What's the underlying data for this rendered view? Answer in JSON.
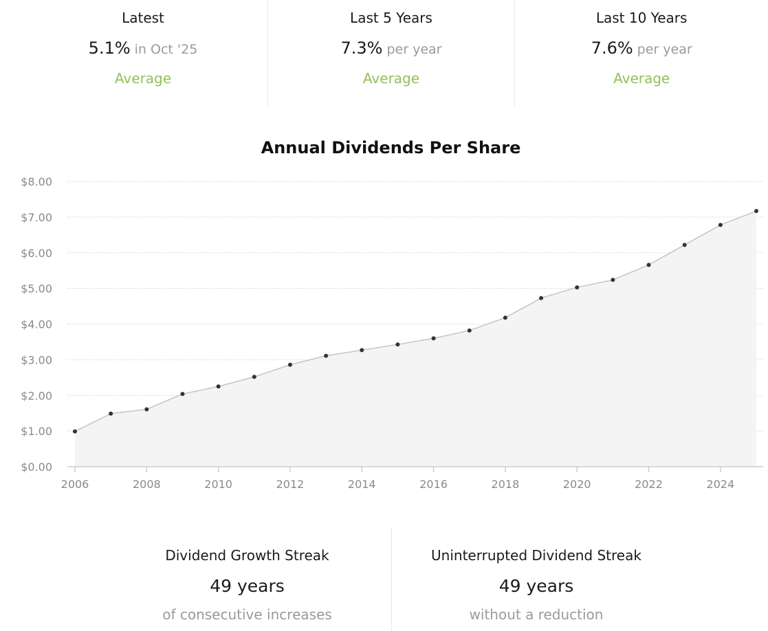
{
  "stats": [
    {
      "label": "Latest",
      "value": "5.1%",
      "suffix": "in Oct '25",
      "rating": "Average"
    },
    {
      "label": "Last 5 Years",
      "value": "7.3%",
      "suffix": "per year",
      "rating": "Average"
    },
    {
      "label": "Last 10 Years",
      "value": "7.6%",
      "suffix": "per year",
      "rating": "Average"
    }
  ],
  "rating_color": "#93c05a",
  "chart_data": {
    "type": "area",
    "title": "Annual Dividends Per Share",
    "xlabel": "",
    "ylabel": "",
    "x": [
      2006,
      2007,
      2008,
      2009,
      2010,
      2011,
      2012,
      2013,
      2014,
      2015,
      2016,
      2017,
      2018,
      2019,
      2020,
      2021,
      2022,
      2023,
      2024,
      2025
    ],
    "values": [
      0.99,
      1.49,
      1.61,
      2.04,
      2.25,
      2.52,
      2.86,
      3.11,
      3.27,
      3.43,
      3.6,
      3.82,
      4.18,
      4.73,
      5.03,
      5.24,
      5.66,
      6.22,
      6.78,
      7.17
    ],
    "xlim": [
      2006,
      2025
    ],
    "ylim": [
      0,
      8
    ],
    "yticks": [
      0,
      1,
      2,
      3,
      4,
      5,
      6,
      7,
      8
    ],
    "ytick_labels": [
      "$0.00",
      "$1.00",
      "$2.00",
      "$3.00",
      "$4.00",
      "$5.00",
      "$6.00",
      "$7.00",
      "$8.00"
    ],
    "xticks": [
      2006,
      2008,
      2010,
      2012,
      2014,
      2016,
      2018,
      2020,
      2022,
      2024
    ],
    "xtick_labels": [
      "2006",
      "2008",
      "2010",
      "2012",
      "2014",
      "2016",
      "2018",
      "2020",
      "2022",
      "2024"
    ],
    "grid": true,
    "colors": {
      "line": "#c4c4c4",
      "fill": "#f4f4f4",
      "point": "#333333",
      "grid": "#d0d0d0",
      "axis": "#cccccc",
      "tick_label": "#8a8a8a"
    }
  },
  "streaks": [
    {
      "label": "Dividend Growth Streak",
      "value": "49 years",
      "sub": "of consecutive increases"
    },
    {
      "label": "Uninterrupted Dividend Streak",
      "value": "49 years",
      "sub": "without a reduction"
    }
  ]
}
